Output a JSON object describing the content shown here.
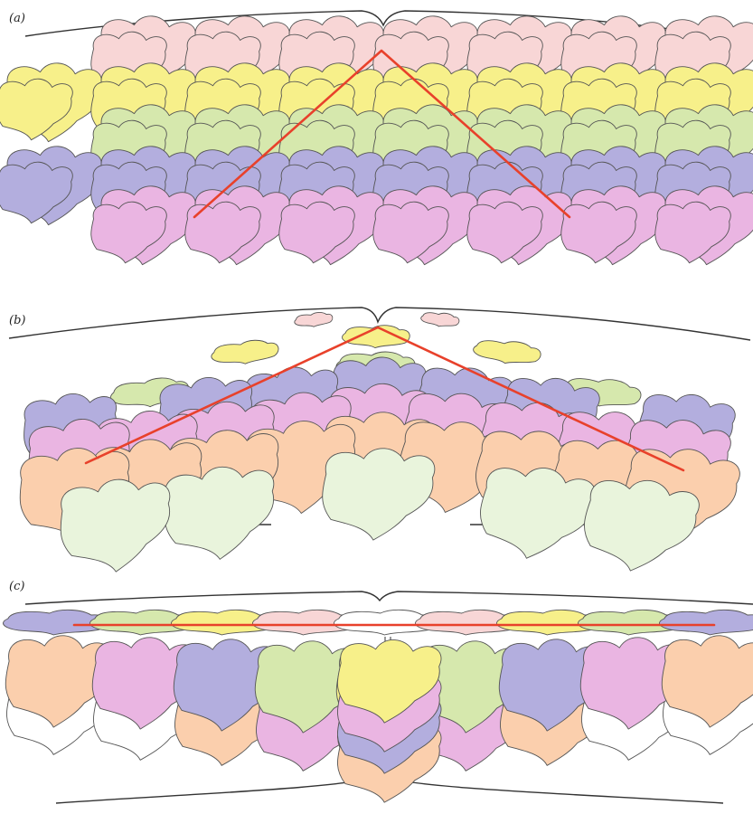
{
  "figure": {
    "panels": [
      {
        "id": "a",
        "label": "(a)"
      },
      {
        "id": "b",
        "label": "(b)"
      },
      {
        "id": "c",
        "label": "(c)"
      }
    ]
  },
  "colors": {
    "pink_light": "#f8d6d6",
    "yellow": "#f7f08a",
    "green": "#d6e8ad",
    "lavender": "#b3aede",
    "magenta": "#eab5e2",
    "peach": "#fbcfad",
    "mint": "#e9f4dc",
    "white": "#ffffff",
    "red_line": "#e8412b",
    "outline": "#333333"
  },
  "panel_a_rows": [
    "pink_light",
    "yellow",
    "green",
    "lavender",
    "magenta"
  ],
  "panel_b_rows": [
    "pink_light",
    "yellow",
    "green",
    "lavender",
    "magenta",
    "peach",
    "mint"
  ],
  "panel_c_top_row": [
    "lavender",
    "green",
    "yellow",
    "pink_light",
    "white",
    "pink_light",
    "yellow",
    "green",
    "lavender"
  ],
  "panel_c_main_row": [
    "peach",
    "magenta",
    "lavender",
    "green",
    "yellow",
    "green",
    "lavender",
    "magenta",
    "peach"
  ],
  "panel_c_lower_row": [
    "white",
    "white",
    "peach",
    "magenta",
    "lavender",
    "magenta",
    "peach",
    "white",
    "white"
  ]
}
